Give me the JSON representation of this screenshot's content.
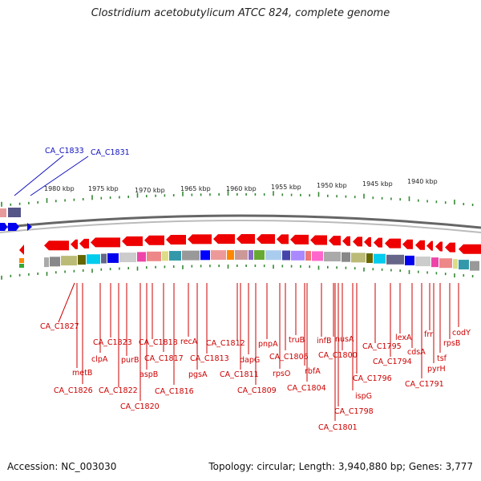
{
  "title": "Clostridium acetobutylicum ATCC 824, complete genome",
  "footer": {
    "accession": "Accession: NC_003030",
    "topology": "Topology: circular; Length: 3,940,880 bp; Genes: 3,777"
  },
  "colors": {
    "gene_red": "#ee0000",
    "gene_blue": "#0000ee",
    "label_red": "#cc0000",
    "label_blue": "#1010c0",
    "tick_green": "#338833",
    "backbone": "#777777"
  },
  "kbp_labels": [
    "1980 kbp",
    "1975 kbp",
    "1970 kbp",
    "1965 kbp",
    "1960 kbp",
    "1955 kbp",
    "1950 kbp",
    "1945 kbp",
    "1940 kbp"
  ],
  "blue_labels": [
    "CA_C1833",
    "CA_C1831"
  ],
  "gene_labels": [
    "CA_C1827",
    "metB",
    "CA_C1826",
    "clpA",
    "CA_C1823",
    "CA_C1822",
    "purB",
    "CA_C1820",
    "aspB",
    "CA_C1818",
    "CA_C1817",
    "CA_C1816",
    "recA",
    "pgsA",
    "CA_C1813",
    "CA_C1812",
    "CA_C1811",
    "dapG",
    "CA_C1809",
    "pnpA",
    "rpsO",
    "CA_C1806",
    "truB",
    "rbfA",
    "CA_C1804",
    "infB",
    "nusA",
    "CA_C1800",
    "CA_C1801",
    "CA_C1798",
    "ispG",
    "CA_C1796",
    "CA_C1795",
    "lexA",
    "CA_C1794",
    "cdsA",
    "CA_C1791",
    "frr",
    "pyrH",
    "tsf",
    "rpsB",
    "codY"
  ]
}
